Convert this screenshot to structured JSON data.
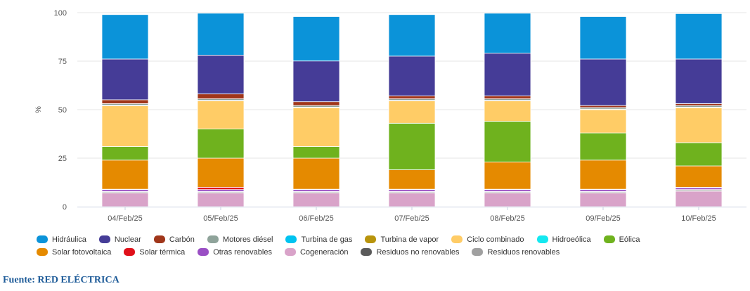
{
  "chart_data": {
    "type": "bar",
    "stacked": true,
    "categories": [
      "04/Feb/25",
      "05/Feb/25",
      "06/Feb/25",
      "07/Feb/25",
      "08/Feb/25",
      "09/Feb/25",
      "10/Feb/25"
    ],
    "ylabel": "%",
    "ylim": [
      0,
      100
    ],
    "yticks": [
      0,
      25,
      50,
      75,
      100
    ],
    "grid": true,
    "legend_position": "bottom",
    "series": [
      {
        "name": "Cogeneración",
        "color": "#d9a3c9",
        "values": [
          7,
          7,
          7,
          7,
          7,
          7,
          8
        ]
      },
      {
        "name": "Residuos no renovables",
        "color": "#5a5a5a",
        "values": [
          0.5,
          0.5,
          0.5,
          0.5,
          0.5,
          0.5,
          0.5
        ]
      },
      {
        "name": "Residuos renovables",
        "color": "#a0a0a0",
        "values": [
          0.3,
          0.3,
          0.3,
          0.3,
          0.3,
          0.3,
          0.3
        ]
      },
      {
        "name": "Otras renovables",
        "color": "#9a4fc4",
        "values": [
          1,
          1,
          1,
          1,
          1,
          1,
          1
        ]
      },
      {
        "name": "Solar térmica",
        "color": "#e0101a",
        "values": [
          0.2,
          1.2,
          0.2,
          0.2,
          0.2,
          0.2,
          0.2
        ]
      },
      {
        "name": "Solar fotovoltaica",
        "color": "#e58a00",
        "values": [
          15,
          15,
          16,
          10,
          14,
          15,
          11
        ]
      },
      {
        "name": "Eólica",
        "color": "#6fb21e",
        "values": [
          7,
          15,
          6,
          24,
          21,
          14,
          12
        ]
      },
      {
        "name": "Hidroeólica",
        "color": "#14e8f0",
        "values": [
          0,
          0,
          0,
          0,
          0,
          0,
          0
        ]
      },
      {
        "name": "Ciclo combinado",
        "color": "#ffcc66",
        "values": [
          21,
          14.5,
          20,
          11.5,
          10.5,
          12,
          18
        ]
      },
      {
        "name": "Turbina de vapor",
        "color": "#b8940c",
        "values": [
          0.3,
          0.3,
          0.3,
          0.3,
          0.3,
          0.3,
          0.3
        ]
      },
      {
        "name": "Turbina de gas",
        "color": "#00c3f0",
        "values": [
          0,
          0,
          0,
          0,
          0,
          0,
          0
        ]
      },
      {
        "name": "Motores diésel",
        "color": "#8fa39a",
        "values": [
          0.8,
          0.8,
          0.8,
          0.8,
          0.8,
          0.8,
          0.8
        ]
      },
      {
        "name": "Carbón",
        "color": "#a0361a",
        "values": [
          2,
          2.5,
          2,
          1.5,
          1.5,
          1,
          1
        ]
      },
      {
        "name": "Nuclear",
        "color": "#453c97",
        "values": [
          21,
          20,
          21,
          20.5,
          22,
          24,
          23
        ]
      },
      {
        "name": "Hidráulica",
        "color": "#0b93d9",
        "values": [
          22.9,
          21.6,
          22.9,
          21.4,
          20.6,
          21.9,
          23.4
        ]
      }
    ]
  },
  "legend": [
    {
      "label": "Hidráulica",
      "color": "#0b93d9"
    },
    {
      "label": "Nuclear",
      "color": "#453c97"
    },
    {
      "label": "Carbón",
      "color": "#a0361a"
    },
    {
      "label": "Motores diésel",
      "color": "#8fa39a"
    },
    {
      "label": "Turbina de gas",
      "color": "#00c3f0"
    },
    {
      "label": "Turbina de vapor",
      "color": "#b8940c"
    },
    {
      "label": "Ciclo combinado",
      "color": "#ffcc66"
    },
    {
      "label": "Hidroeólica",
      "color": "#14e8f0"
    },
    {
      "label": "Eólica",
      "color": "#6fb21e"
    },
    {
      "label": "Solar fotovoltaica",
      "color": "#e58a00"
    },
    {
      "label": "Solar térmica",
      "color": "#e0101a"
    },
    {
      "label": "Otras renovables",
      "color": "#9a4fc4"
    },
    {
      "label": "Cogeneración",
      "color": "#d9a3c9"
    },
    {
      "label": "Residuos no renovables",
      "color": "#5a5a5a"
    },
    {
      "label": "Residuos renovables",
      "color": "#a0a0a0"
    }
  ],
  "source": "Fuente: RED ELÉCTRICA"
}
